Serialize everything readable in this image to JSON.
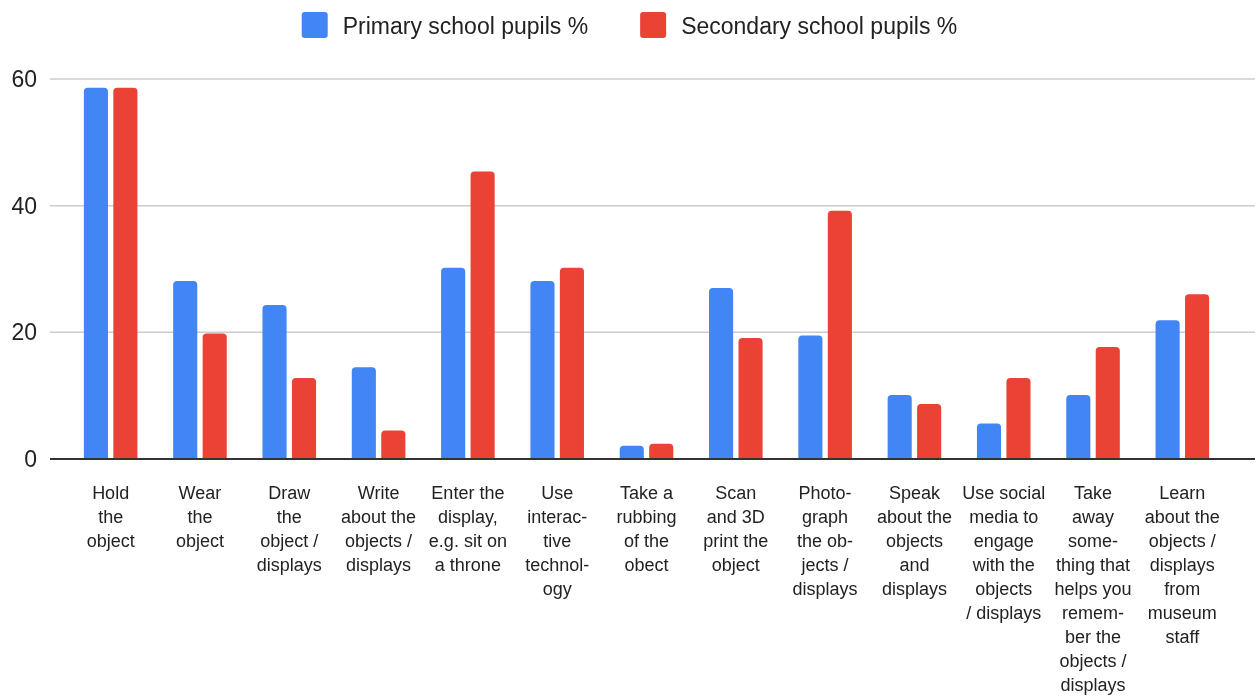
{
  "chart_data": {
    "type": "bar",
    "categories": [
      "Hold\nthe\nobject",
      "Wear\nthe\nobject",
      "Draw\nthe\nobject /\ndisplays",
      "Write\nabout the\nobjects /\ndisplays",
      "Enter the\ndisplay,\ne.g. sit on\na throne",
      "Use\ninterac-\ntive\ntechnol-\nogy",
      "Take a\nrubbing\nof the\nobect",
      "Scan\nand 3D\nprint the\nobject",
      "Photo-\ngraph\nthe ob-\njects /\ndisplays",
      "Speak\nabout the\nobjects\nand\ndisplays",
      "Use social\nmedia to\nengage\nwith the\nobjects\n/ displays",
      "Take\naway\nsome-\nthing that\nhelps you\nremem-\nber the\nobjects /\ndisplays",
      "Learn\nabout the\nobjects /\ndisplays\nfrom\nmuseum\nstaff"
    ],
    "series": [
      {
        "name": "Primary school pupils %",
        "color": "#4285f4",
        "values": [
          58.6,
          28.1,
          24.3,
          14.5,
          30.2,
          28.1,
          2.1,
          27.0,
          19.5,
          10.1,
          5.6,
          10.1,
          21.9
        ]
      },
      {
        "name": "Secondary school pupils %",
        "color": "#ea4335",
        "values": [
          58.6,
          19.8,
          12.8,
          4.5,
          45.4,
          30.2,
          2.4,
          19.1,
          39.2,
          8.7,
          12.8,
          17.7,
          26.0
        ]
      }
    ],
    "ylim": [
      0,
      60
    ],
    "yticks": [
      0,
      20,
      40,
      60
    ],
    "grid": "y",
    "legend": "top"
  }
}
